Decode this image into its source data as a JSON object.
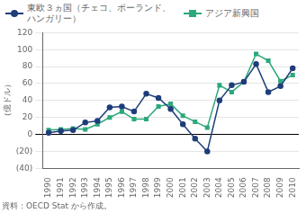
{
  "chart_data": {
    "type": "line",
    "x": [
      1990,
      1991,
      1992,
      1993,
      1994,
      1995,
      1996,
      1997,
      1998,
      1999,
      2000,
      2001,
      2002,
      2003,
      2004,
      2005,
      2006,
      2007,
      2008,
      2009,
      2010
    ],
    "xlim": [
      1989.5,
      2010.5
    ],
    "xticks": [
      1990,
      1991,
      1992,
      1993,
      1994,
      1995,
      1996,
      1997,
      1998,
      1999,
      2000,
      2001,
      2002,
      2003,
      2004,
      2005,
      2006,
      2007,
      2008,
      2009,
      2010
    ],
    "ylim": [
      -40,
      120
    ],
    "yticks": [
      {
        "value": -40,
        "label": "(40)"
      },
      {
        "value": -20,
        "label": "(20)"
      },
      0,
      20,
      40,
      60,
      80,
      100,
      120
    ],
    "ylabel": "（億ドル）",
    "annotations": [
      "資料：OECD Stat から作成。"
    ],
    "series": [
      {
        "name": "東欧３ヵ国（チェコ、ポーランド、\nハンガリー）",
        "color": "#1f3d7a",
        "marker": "circle",
        "values": [
          2,
          4,
          5,
          14,
          16,
          32,
          33,
          27,
          48,
          43,
          30,
          12,
          -5,
          -20,
          40,
          58,
          62,
          83,
          50,
          57,
          78
        ]
      },
      {
        "name": "アジア新興国",
        "color": "#2ca87a",
        "marker": "square",
        "values": [
          5,
          6,
          7,
          6,
          12,
          20,
          27,
          18,
          18,
          33,
          36,
          22,
          15,
          8,
          58,
          50,
          62,
          95,
          87,
          63,
          70
        ]
      }
    ],
    "grid": true,
    "legend": "upper left"
  }
}
